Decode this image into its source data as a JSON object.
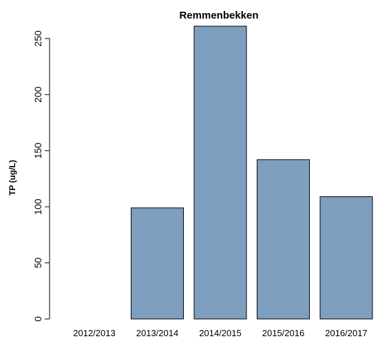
{
  "chart_data": {
    "type": "bar",
    "title": "Remmenbekken",
    "ylabel": "TP (ug/L)",
    "xlabel": "",
    "categories": [
      "2012/2013",
      "2013/2014",
      "2014/2015",
      "2015/2016",
      "2016/2017"
    ],
    "values": [
      null,
      99,
      261,
      142,
      109
    ],
    "yticks": [
      0,
      50,
      100,
      150,
      200,
      250
    ],
    "ylim": [
      0,
      261
    ],
    "bar_color": "#7f9fc0",
    "grid": false
  }
}
